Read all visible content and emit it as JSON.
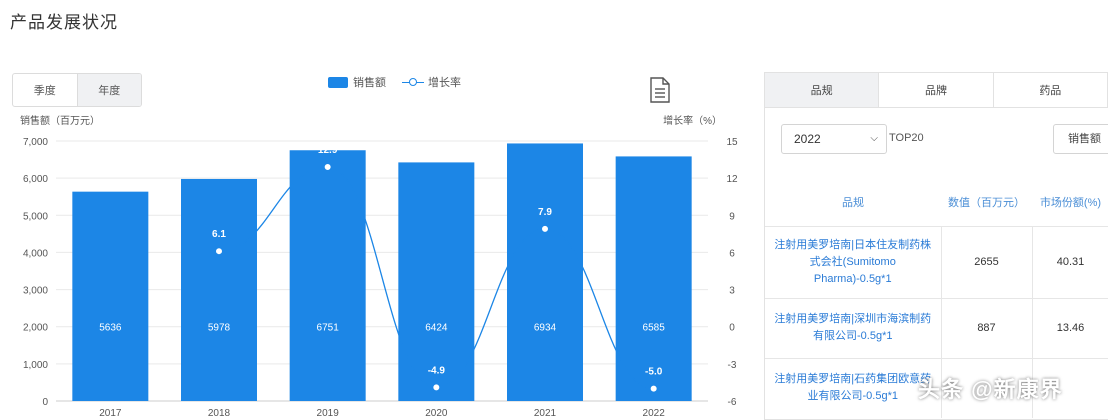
{
  "page": {
    "title": "产品发展状况"
  },
  "toggle": {
    "options": [
      "季度",
      "年度"
    ],
    "active": 1
  },
  "legend": {
    "bar_label": "销售额",
    "line_label": "增长率"
  },
  "colors": {
    "bar": "#1c86e6",
    "line": "#1c86e6",
    "axis_text": "#555555",
    "grid": "#e9e9e9"
  },
  "chart_data": {
    "type": "bar",
    "categories": [
      "2017",
      "2018",
      "2019",
      "2020",
      "2021",
      "2022"
    ],
    "series": [
      {
        "name": "销售额",
        "type": "bar",
        "axis": "left",
        "values": [
          5636,
          5978,
          6751,
          6424,
          6934,
          6585
        ],
        "labels": [
          "5636",
          "5978",
          "6751",
          "6424",
          "6934",
          "6585"
        ]
      },
      {
        "name": "增长率",
        "type": "line",
        "axis": "right",
        "values": [
          null,
          6.1,
          12.9,
          -4.9,
          7.9,
          -5.0
        ],
        "labels": [
          "",
          "6.1",
          "12.9",
          "-4.9",
          "7.9",
          "-5.0"
        ]
      }
    ],
    "ylabel": "销售额（百万元）",
    "y2label": "增长率（%）",
    "ylim": [
      0,
      7000
    ],
    "y2lim": [
      -6,
      15
    ],
    "yticks": [
      "0",
      "1,000",
      "2,000",
      "3,000",
      "4,000",
      "5,000",
      "6,000",
      "7,000"
    ],
    "y2ticks": [
      "-6",
      "-3",
      "0",
      "3",
      "6",
      "9",
      "12",
      "15"
    ],
    "grid": true
  },
  "panel": {
    "tabs": [
      "品规",
      "品牌",
      "药品"
    ],
    "active_tab": 0,
    "year_select": "2022",
    "top_label": "TOP20",
    "sort_button": "销售额",
    "columns": [
      "品规",
      "数值（百万元）",
      "市场份额(%)"
    ],
    "rows": [
      {
        "name": "注射用美罗培南|日本住友制药株式会社(Sumitomo Pharma)-0.5g*1",
        "value": "2655",
        "share": "40.31"
      },
      {
        "name": "注射用美罗培南|深圳市海滨制药有限公司-0.5g*1",
        "value": "887",
        "share": "13.46"
      },
      {
        "name": "注射用美罗培南|石药集团欧意药业有限公司-0.5g*1",
        "value": "",
        "share": ""
      }
    ]
  },
  "watermark": "头条 @新康界"
}
